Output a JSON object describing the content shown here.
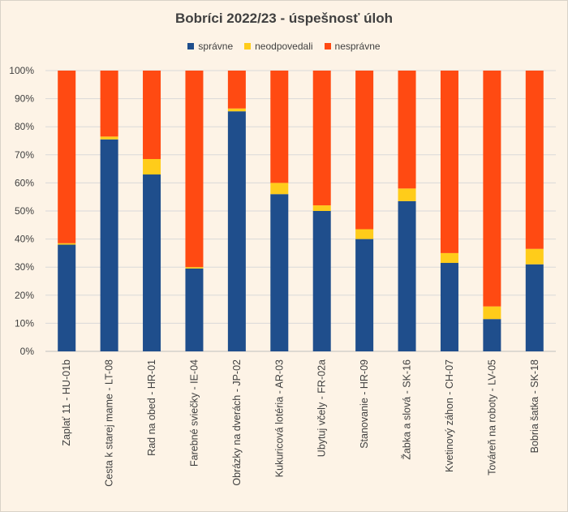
{
  "chart_data": {
    "type": "stacked-bar-percent",
    "title": "Bobríci 2022/23 - úspešnosť úloh",
    "ylim": [
      0,
      100
    ],
    "y_ticks": [
      "0%",
      "10%",
      "20%",
      "30%",
      "40%",
      "50%",
      "60%",
      "70%",
      "80%",
      "90%",
      "100%"
    ],
    "legend_position": "top",
    "categories": [
      "Zaplať 11 - HU-01b",
      "Cesta k starej mame - LT-08",
      "Rad na obed - HR-01",
      "Farebné sviečky - IE-04",
      "Obrázky na dverách - JP-02",
      "Kukuricová lotéria - AR-03",
      "Ubytuj včely - FR-02a",
      "Stanovanie - HR-09",
      "Žabka a slová - SK-16",
      "Kvetinový záhon - CH-07",
      "Továreň na roboty - LV-05",
      "Bobria šatka - SK-18"
    ],
    "series": [
      {
        "name": "správne",
        "color": "#1f4e8c",
        "values": [
          38,
          75.5,
          63,
          29.5,
          85.5,
          56,
          50,
          40,
          53.5,
          31.5,
          11.5,
          31
        ]
      },
      {
        "name": "neodpovedali",
        "color": "#ffcc1a",
        "values": [
          0.5,
          1,
          5.5,
          0.5,
          1,
          4,
          2,
          3.5,
          4.5,
          3.5,
          4.5,
          5.5
        ]
      },
      {
        "name": "nesprávne",
        "color": "#ff4a12",
        "values": [
          61.5,
          23.5,
          31.5,
          70,
          13.5,
          40,
          48,
          56.5,
          42,
          65,
          84,
          63.5
        ]
      }
    ]
  }
}
